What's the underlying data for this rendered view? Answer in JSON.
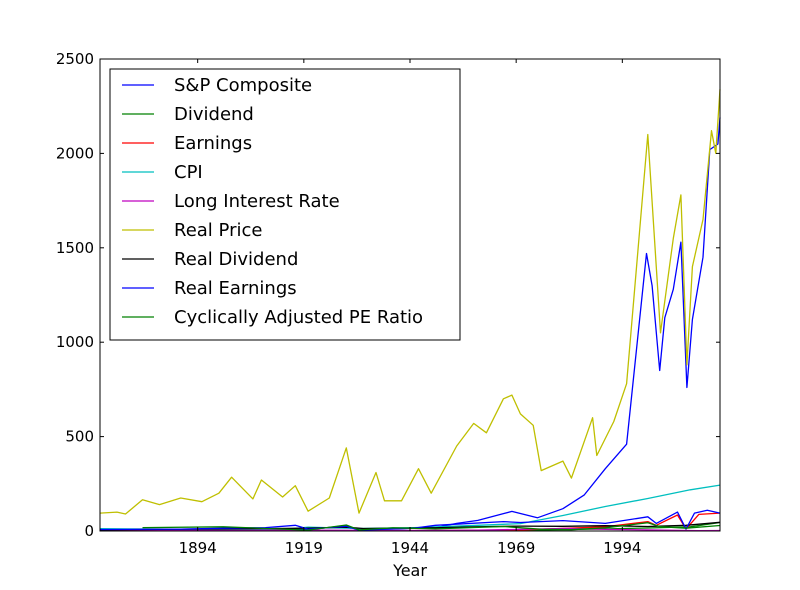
{
  "chart_data": {
    "type": "line",
    "title": "",
    "xlabel": "Year",
    "ylabel": "",
    "xlim": [
      1871,
      2017
    ],
    "ylim": [
      0,
      2500
    ],
    "xticks": [
      1894,
      1919,
      1944,
      1969,
      1994
    ],
    "yticks": [
      0,
      500,
      1000,
      1500,
      2000,
      2500
    ],
    "xtick_labels": [
      "1894",
      "1919",
      "1944",
      "1969",
      "1994"
    ],
    "ytick_labels": [
      "0",
      "500",
      "1000",
      "1500",
      "2000",
      "2500"
    ],
    "grid": false,
    "legend_position": "top-left",
    "series": [
      {
        "name": "S&P Composite",
        "color": "#0000ff",
        "x": [
          1871,
          1900,
          1920,
          1929,
          1932,
          1950,
          1955,
          1960,
          1966,
          1968,
          1974,
          1980,
          1985,
          1990,
          1995,
          1999.7,
          2001,
          2002.8,
          2004,
          2006,
          2007.8,
          2009.2,
          2010.5,
          2013,
          2014.6,
          2016.5,
          2017
        ],
        "y": [
          4.5,
          7,
          7.5,
          28,
          6,
          18,
          40,
          56,
          92,
          104,
          70,
          118,
          190,
          330,
          460,
          1470,
          1300,
          850,
          1130,
          1280,
          1530,
          760,
          1120,
          1450,
          2020,
          2050,
          2190
        ]
      },
      {
        "name": "Dividend",
        "color": "#008000",
        "x": [
          1871,
          1900,
          1930,
          1950,
          1970,
          1990,
          2000,
          2010,
          2017
        ],
        "y": [
          0.3,
          0.3,
          1,
          1.5,
          3,
          11,
          16,
          22,
          45
        ]
      },
      {
        "name": "Earnings",
        "color": "#ff0000",
        "x": [
          1871,
          1900,
          1930,
          1950,
          1970,
          1990,
          2000,
          2002,
          2007,
          2009,
          2012,
          2017
        ],
        "y": [
          0.4,
          1,
          1.5,
          2.5,
          5.5,
          22,
          50,
          30,
          85,
          10,
          88,
          95
        ]
      },
      {
        "name": "CPI",
        "color": "#00bfbf",
        "x": [
          1871,
          1900,
          1915,
          1920,
          1932,
          1945,
          1960,
          1970,
          1980,
          1990,
          2000,
          2010,
          2017
        ],
        "y": [
          12,
          8,
          10,
          20,
          13,
          18,
          30,
          39,
          82,
          130,
          172,
          218,
          243
        ]
      },
      {
        "name": "Long Interest Rate",
        "color": "#bf00bf",
        "x": [
          1871,
          1900,
          1920,
          1945,
          1960,
          1981,
          1990,
          2000,
          2012,
          2017
        ],
        "y": [
          5.3,
          3.3,
          4.5,
          2.4,
          4.2,
          13.9,
          8.5,
          6,
          1.8,
          2.4
        ]
      },
      {
        "name": "Real Price",
        "color": "#bfbf00",
        "x": [
          1871,
          1875,
          1877,
          1881,
          1885,
          1890,
          1895,
          1899,
          1902,
          1907,
          1909,
          1914,
          1917,
          1920,
          1925,
          1929,
          1932,
          1936,
          1938,
          1942,
          1946,
          1949,
          1955,
          1959,
          1962,
          1966,
          1968,
          1970,
          1973,
          1974.9,
          1980,
          1982,
          1987,
          1988,
          1992,
          1995,
          2000,
          2003,
          2006,
          2007.8,
          2009.2,
          2010.5,
          2013,
          2015,
          2016,
          2017
        ],
        "y": [
          95,
          100,
          90,
          165,
          140,
          175,
          155,
          200,
          285,
          170,
          270,
          180,
          240,
          105,
          175,
          440,
          95,
          310,
          160,
          160,
          330,
          200,
          450,
          570,
          520,
          700,
          720,
          620,
          560,
          320,
          370,
          280,
          600,
          400,
          580,
          780,
          2100,
          1050,
          1550,
          1780,
          880,
          1400,
          1650,
          2120,
          2000,
          2340
        ]
      },
      {
        "name": "Real Dividend",
        "color": "#000000",
        "x": [
          1871,
          1885,
          1900,
          1915,
          1920,
          1929,
          1933,
          1950,
          1960,
          1970,
          1980,
          1990,
          2000,
          2009,
          2017
        ],
        "y": [
          6,
          9,
          11,
          14,
          15,
          20,
          13,
          17,
          22,
          26,
          25,
          28,
          24,
          30,
          46
        ]
      },
      {
        "name": "Real Earnings",
        "color": "#0000ff",
        "x": [
          1871,
          1890,
          1900,
          1910,
          1917,
          1920,
          1929,
          1932,
          1945,
          1950,
          1966,
          1970,
          1980,
          1990,
          2000,
          2002,
          2007,
          2009,
          2011,
          2014,
          2017
        ],
        "y": [
          8,
          10,
          15,
          18,
          30,
          10,
          25,
          5,
          15,
          30,
          50,
          45,
          55,
          40,
          75,
          40,
          100,
          10,
          95,
          110,
          95
        ]
      },
      {
        "name": "Cyclically Adjusted PE Ratio",
        "color": "#008000",
        "x": [
          1881,
          1900,
          1920,
          1929,
          1932,
          1940,
          1950,
          1966,
          1975,
          1982,
          1990,
          2000,
          2003,
          2009,
          2017
        ],
        "y": [
          18,
          22,
          5,
          32,
          6,
          17,
          11,
          24,
          9,
          7,
          17,
          44,
          23,
          15,
          29
        ]
      }
    ]
  }
}
